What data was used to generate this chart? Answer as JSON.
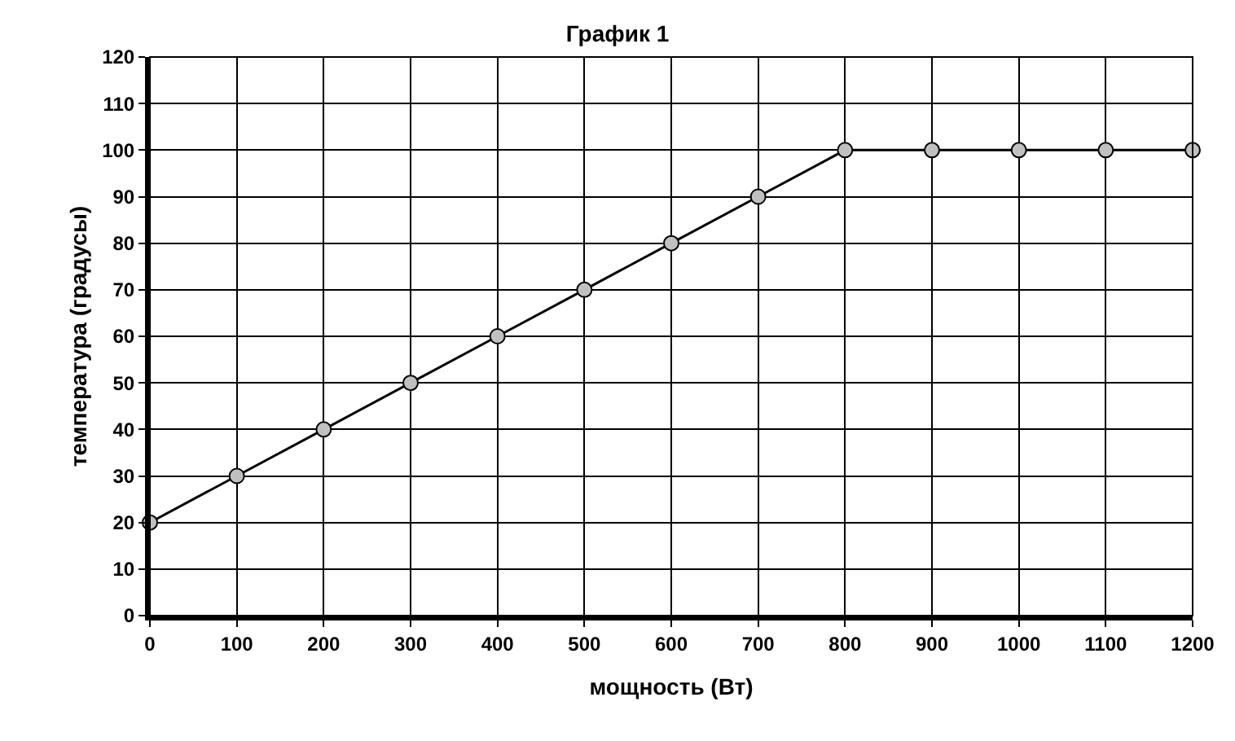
{
  "chart_data": {
    "type": "line",
    "title": "График 1",
    "xlabel": "мощность (Вт)",
    "ylabel": "температура (градусы)",
    "x": [
      0,
      100,
      200,
      300,
      400,
      500,
      600,
      700,
      800,
      900,
      1000,
      1100,
      1200
    ],
    "series": [
      {
        "color": "#000000",
        "values": [
          20,
          30,
          40,
          50,
          60,
          70,
          80,
          90,
          100,
          100,
          100,
          100,
          100
        ]
      }
    ],
    "xlim": [
      0,
      1200
    ],
    "xticks": [
      0,
      100,
      200,
      300,
      400,
      500,
      600,
      700,
      800,
      900,
      1000,
      1100,
      1200
    ],
    "ylim": [
      0,
      120
    ],
    "yticks": [
      0,
      10,
      20,
      30,
      40,
      50,
      60,
      70,
      80,
      90,
      100,
      110,
      120
    ],
    "grid": true,
    "marker": "circle",
    "line_style": "solid"
  }
}
